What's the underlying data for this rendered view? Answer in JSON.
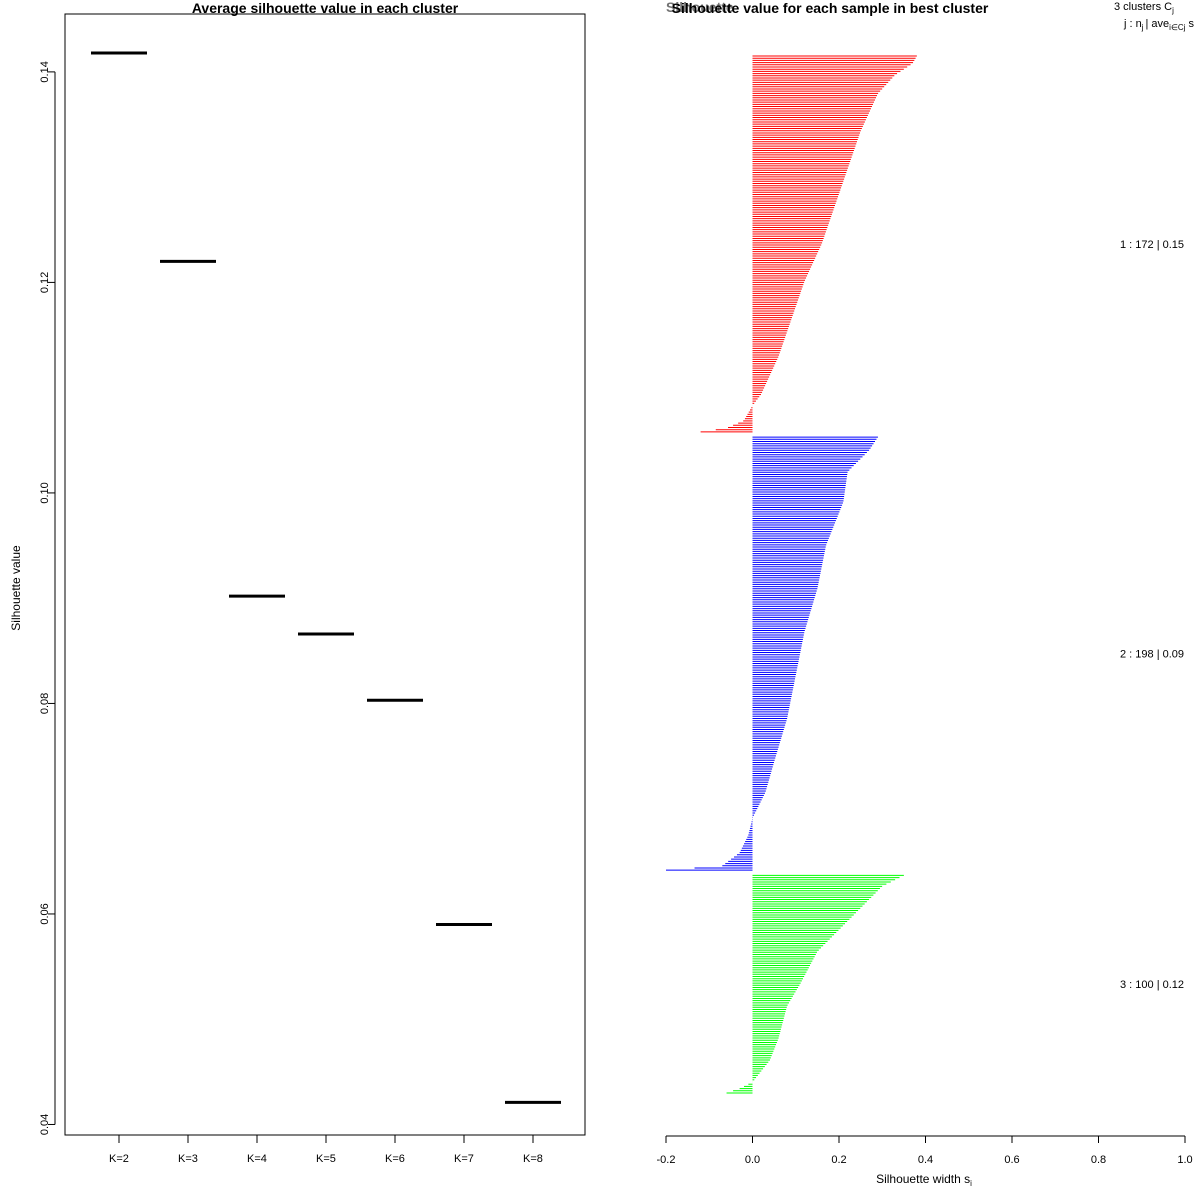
{
  "chart_data": [
    {
      "type": "line",
      "title": "Average silhouette value in each cluster",
      "xlabel": "",
      "ylabel": "Silhouette value",
      "categories": [
        "K=2",
        "K=3",
        "K=4",
        "K=5",
        "K=6",
        "K=7",
        "K=8"
      ],
      "values": [
        0.1418,
        0.122,
        0.0902,
        0.0866,
        0.0803,
        0.059,
        0.0421
      ],
      "ylim": [
        0.039,
        0.1455
      ],
      "yticks": [
        0.04,
        0.06,
        0.08,
        0.1,
        0.12,
        0.14
      ],
      "ytick_labels": [
        "0.04",
        "0.06",
        "0.08",
        "0.10",
        "0.12",
        "0.14"
      ],
      "grid": false
    },
    {
      "type": "bar",
      "orientation": "horizontal",
      "title": "Silhouette value for each sample in best cluster",
      "title_overlap_text": "Silhouette",
      "xlabel": "Silhouette width s",
      "xlabel_sub": "i",
      "xlim": [
        -0.2,
        1.0
      ],
      "xticks": [
        -0.2,
        0.0,
        0.2,
        0.4,
        0.6,
        0.8,
        1.0
      ],
      "xtick_labels": [
        "-0.2",
        "0.0",
        "0.2",
        "0.4",
        "0.6",
        "0.8",
        "1.0"
      ],
      "legend_header": {
        "line1": "3  clusters  C",
        "line1_sub": "j",
        "line2": "j :  n",
        "line2_sub": "j",
        "line2_mid": "| ave",
        "line2_mid_sub": "i∈Cj",
        "line2_end": "s"
      },
      "series": [
        {
          "name": "1",
          "n": 172,
          "label": "1 :   172  |  0.15",
          "color": "#ff0000",
          "sorted_profile": [
            [
              0,
              0.38
            ],
            [
              0.02,
              0.37
            ],
            [
              0.05,
              0.33
            ],
            [
              0.1,
              0.29
            ],
            [
              0.2,
              0.25
            ],
            [
              0.3,
              0.22
            ],
            [
              0.4,
              0.19
            ],
            [
              0.5,
              0.16
            ],
            [
              0.6,
              0.12
            ],
            [
              0.7,
              0.09
            ],
            [
              0.8,
              0.06
            ],
            [
              0.9,
              0.02
            ],
            [
              0.93,
              0.0
            ],
            [
              0.97,
              -0.02
            ],
            [
              0.99,
              -0.06
            ],
            [
              1.0,
              -0.12
            ]
          ]
        },
        {
          "name": "2",
          "n": 198,
          "label": "2 :   198  |  0.09",
          "color": "#0000ff",
          "sorted_profile": [
            [
              0,
              0.29
            ],
            [
              0.03,
              0.27
            ],
            [
              0.08,
              0.22
            ],
            [
              0.15,
              0.21
            ],
            [
              0.25,
              0.17
            ],
            [
              0.35,
              0.15
            ],
            [
              0.45,
              0.12
            ],
            [
              0.55,
              0.1
            ],
            [
              0.65,
              0.08
            ],
            [
              0.75,
              0.05
            ],
            [
              0.82,
              0.03
            ],
            [
              0.88,
              0.0
            ],
            [
              0.92,
              -0.01
            ],
            [
              0.96,
              -0.03
            ],
            [
              0.99,
              -0.07
            ],
            [
              1.0,
              -0.2
            ]
          ]
        },
        {
          "name": "3",
          "n": 100,
          "label": "3 :   100  |  0.12",
          "color": "#00ff00",
          "sorted_profile": [
            [
              0,
              0.35
            ],
            [
              0.05,
              0.3
            ],
            [
              0.15,
              0.25
            ],
            [
              0.25,
              0.2
            ],
            [
              0.35,
              0.15
            ],
            [
              0.5,
              0.11
            ],
            [
              0.6,
              0.08
            ],
            [
              0.75,
              0.06
            ],
            [
              0.85,
              0.04
            ],
            [
              0.9,
              0.02
            ],
            [
              0.95,
              0.0
            ],
            [
              0.98,
              -0.03
            ],
            [
              1.0,
              -0.06
            ]
          ]
        }
      ]
    }
  ]
}
